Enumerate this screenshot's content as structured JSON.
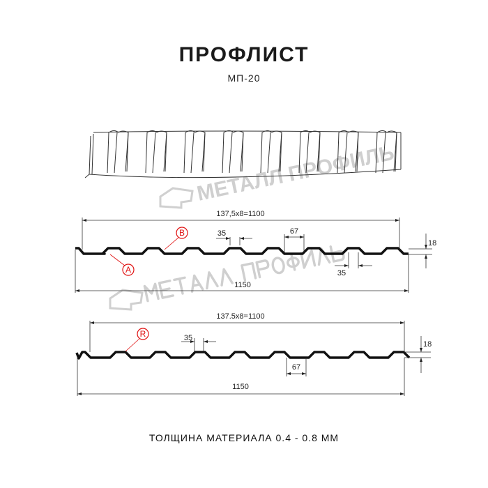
{
  "header": {
    "title": "ПРОФЛИСТ",
    "subtitle": "МП-20"
  },
  "watermark": {
    "text": "МЕТАЛЛ ПРОФИЛЬ"
  },
  "profile_top": {
    "pitch_label": "137,5x8=1100",
    "ridge_label": "35",
    "valley_label": "67",
    "bottom_ridge_label": "35",
    "height_label": "18",
    "width_label": "1150",
    "marker_a": "A",
    "marker_b": "B"
  },
  "profile_bottom": {
    "pitch_label": "137.5x8=1100",
    "ridge_label": "35",
    "valley_label": "67",
    "height_label": "18",
    "width_label": "1150",
    "marker_r": "R"
  },
  "footer": {
    "text": "ТОЛЩИНА МАТЕРИАЛА 0.4 - 0.8 ММ"
  },
  "colors": {
    "profile": "#111111",
    "marker": "#e01010",
    "watermark": "#cfcfcf"
  }
}
